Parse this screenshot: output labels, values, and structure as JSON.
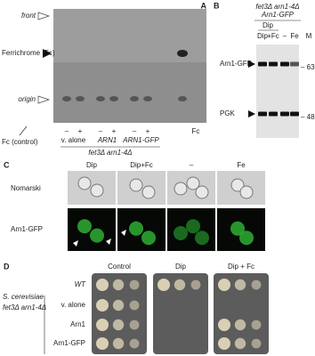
{
  "panel_a": {
    "label": "A",
    "front": "front",
    "ferrichrome": "Ferrichrome (Fc)",
    "origin": "origin",
    "control": "Fc (control)",
    "lane_signs": [
      "–",
      "+",
      "–",
      "+",
      "–",
      "+"
    ],
    "fc": "Fc",
    "strains": [
      "v. alone",
      "ARN1",
      "ARN1-GFP"
    ],
    "genotype": "fet3Δ arn1-4Δ"
  },
  "panel_b": {
    "label": "B",
    "genotype": "fet3Δ arn1-4Δ",
    "construct": "Arn1-GFP",
    "group": "Dip",
    "lanes": [
      "Dip",
      "+Fc",
      "–",
      "Fe"
    ],
    "marker": "M",
    "rows": [
      "Arn1-GFP",
      "PGK"
    ],
    "sizes": [
      "– 63",
      "– 48"
    ]
  },
  "panel_c": {
    "label": "C",
    "columns": [
      "Dip",
      "Dip+Fc",
      "–",
      "Fe"
    ],
    "rows": [
      "Nomarski",
      "Arn1-GFP"
    ]
  },
  "panel_d": {
    "label": "D",
    "conditions": [
      "Control",
      "Dip",
      "Dip + Fc"
    ],
    "wt": "WT",
    "species": "S. cerevisiae",
    "genotype": "fet3Δ arn1-4Δ",
    "strains": [
      "v. alone",
      "Arn1",
      "Arn1-GFP"
    ]
  }
}
